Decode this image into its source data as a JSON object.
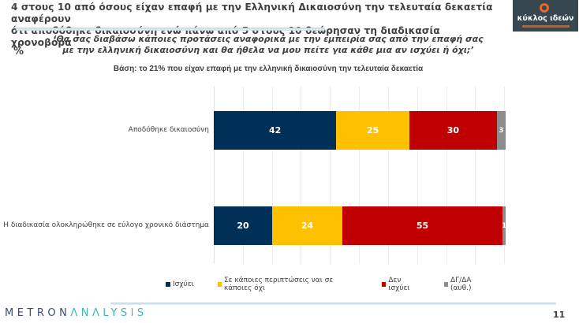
{
  "header": {
    "title_line1": "4 στους 10 από όσους είχαν επαφή με την Ελληνική Δικαιοσύνη την τελευταία δεκαετία αναφέρουν",
    "title_line2": "ότι αποδόθηκε δικαιοσύνη ενώ πάνω από 5 στους 10 θεώρησαν τη διαδικασία χρονοβόρα",
    "logo_text": "κύκλος ιδεών"
  },
  "unit_label": "%",
  "question": "‘Θα σας διαβάσω κάποιες προτάσεις αναφορικά με την εμπειρία σας από την επαφή σας με την ελληνική δικαιοσύνη και θα ήθελα να μου πείτε για κάθε μια αν ισχύει ή όχι;’",
  "base": "Βάση: το 21% που είχαν επαφή με την ελληνική δικαιοσύνη την τελευταία δεκαετία",
  "colors": {
    "ischyei": "#003057",
    "partial": "#ffc000",
    "den_ischyei": "#c00000",
    "dk": "#8c8c8c"
  },
  "chart_data": {
    "type": "bar",
    "orientation": "horizontal",
    "stacked": true,
    "title": "Βάση: το 21% που είχαν επαφή με την ελληνική δικαιοσύνη την τελευταία δεκαετία",
    "xlabel": "",
    "ylabel": "%",
    "xlim": [
      0,
      100
    ],
    "grid": true,
    "legend_position": "bottom",
    "categories": [
      "Αποδόθηκε δικαιοσύνη",
      "Η διαδικασία ολοκληρώθηκε σε εύλογο χρονικό διάστημα"
    ],
    "series": [
      {
        "name": "Ισχύει",
        "color": "#003057",
        "values": [
          42,
          20
        ]
      },
      {
        "name": "Σε κάποιες περιπτώσεις ναι σε κάποιες όχι",
        "color": "#ffc000",
        "values": [
          25,
          24
        ]
      },
      {
        "name": "Δεν ισχύει",
        "color": "#c00000",
        "values": [
          30,
          55
        ]
      },
      {
        "name": "ΔΓ/ΔΑ (αυθ.)",
        "color": "#8c8c8c",
        "values": [
          3,
          1
        ]
      }
    ]
  },
  "footer": {
    "brand_part1": "METRON",
    "brand_part2": "ΛNΛLYSIS",
    "page_number": "11"
  }
}
